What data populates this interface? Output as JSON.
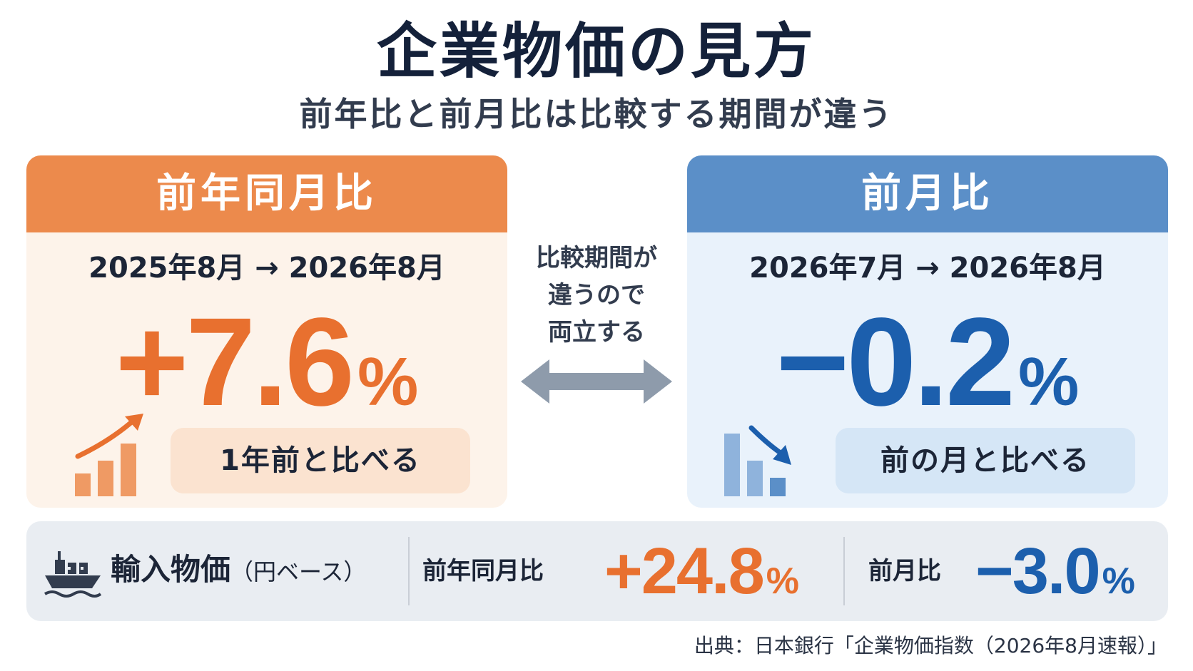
{
  "title": "企業物価の見方",
  "subtitle": "前年比と前月比は比較する期間が違う",
  "yoy_card": {
    "header": "前年同月比",
    "period": "2025年8月 → 2026年8月",
    "value": "+7.6",
    "unit": "%",
    "note": "1年前と比べる",
    "accent_color": "#ec8a4c",
    "icon": "rising-bar-chart-icon"
  },
  "mom_card": {
    "header": "前月比",
    "period": "2026年7月 → 2026年8月",
    "value": "−0.2",
    "unit": "%",
    "note": "前の月と比べる",
    "accent_color": "#5b8fc8",
    "icon": "falling-bar-chart-icon"
  },
  "middle": {
    "line1": "比較期間が",
    "line2": "違うので",
    "line3": "両立する",
    "icon": "double-arrow-icon"
  },
  "import_prices": {
    "label": "輸入物価",
    "label_note": "（円ベース）",
    "icon": "cargo-ship-icon",
    "yoy_caption": "前年同月比",
    "yoy_value": "+24.8",
    "mom_caption": "前月比",
    "mom_value": "−3.0",
    "unit": "%"
  },
  "source": "出典：日本銀行「企業物価指数（2026年8月速報）」"
}
